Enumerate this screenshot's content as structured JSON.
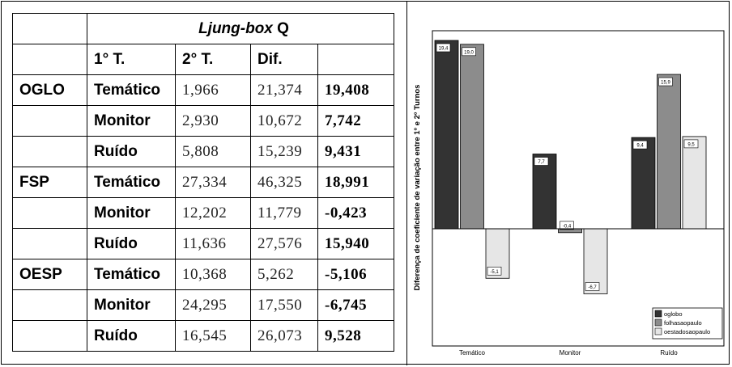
{
  "table": {
    "title_italic": "Ljung-box",
    "title_plain": " Q",
    "headers": [
      "1° T.",
      "2° T.",
      "Dif."
    ],
    "rows": [
      {
        "group": "OGLO",
        "type": "Temático",
        "t1": "1,966",
        "t2": "21,374",
        "dif": "19,408"
      },
      {
        "group": "",
        "type": "Monitor",
        "t1": "2,930",
        "t2": "10,672",
        "dif": "7,742"
      },
      {
        "group": "",
        "type": "Ruído",
        "t1": "5,808",
        "t2": "15,239",
        "dif": "9,431"
      },
      {
        "group": "FSP",
        "type": "Temático",
        "t1": "27,334",
        "t2": "46,325",
        "dif": "18,991"
      },
      {
        "group": "",
        "type": "Monitor",
        "t1": "12,202",
        "t2": "11,779",
        "dif": "-0,423"
      },
      {
        "group": "",
        "type": "Ruído",
        "t1": "11,636",
        "t2": "27,576",
        "dif": "15,940"
      },
      {
        "group": "OESP",
        "type": "Temático",
        "t1": "10,368",
        "t2": "5,262",
        "dif": "-5,106"
      },
      {
        "group": "",
        "type": "Monitor",
        "t1": "24,295",
        "t2": "17,550",
        "dif": "-6,745"
      },
      {
        "group": "",
        "type": "Ruído",
        "t1": "16,545",
        "t2": "26,073",
        "dif": "9,528"
      }
    ]
  },
  "chart_data": {
    "type": "bar",
    "title": "",
    "xlabel": "",
    "ylabel": "Diferença de coeficiente de variação entre 1º e 2º Turnos",
    "categories": [
      "Temático",
      "Monitor",
      "Ruído"
    ],
    "series": [
      {
        "name": "oglobo",
        "color": "#333333",
        "values": [
          19.4,
          7.7,
          9.4
        ],
        "labels": [
          "19,4",
          "7,7",
          "9,4"
        ]
      },
      {
        "name": "folhasaopaulo",
        "color": "#8c8c8c",
        "values": [
          19.0,
          -0.4,
          15.9
        ],
        "labels": [
          "19,0",
          "-0,4",
          "15,9"
        ]
      },
      {
        "name": "oestadosaopaulo",
        "color": "#e6e6e6",
        "values": [
          -5.1,
          -6.7,
          9.5
        ],
        "labels": [
          "-5,1",
          "-6,7",
          "9,5"
        ]
      }
    ],
    "ylim": [
      -11,
      19.4
    ],
    "grid": false,
    "legend": "bottom-right"
  }
}
